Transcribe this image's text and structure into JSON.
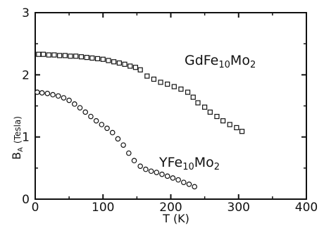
{
  "chart_data": {
    "type": "scatter",
    "title": "",
    "xlabel": "T (K)",
    "ylabel": "B",
    "ylabel_sub": "A",
    "ylabel_unit": "(Tesla)",
    "xlim": [
      0,
      400
    ],
    "ylim": [
      0,
      3
    ],
    "xticks": [
      0,
      100,
      200,
      300,
      400
    ],
    "yticks": [
      0,
      1,
      2,
      3
    ],
    "xtick_labels": [
      "0",
      "100",
      "200",
      "300",
      "400"
    ],
    "ytick_labels": [
      "0",
      "1",
      "2",
      "3"
    ],
    "grid": false,
    "series": [
      {
        "name": "GdFe10Mo2",
        "label_parts": {
          "a": "GdFe",
          "sub1": "10",
          "b": "Mo",
          "sub2": "2"
        },
        "marker": "square",
        "x": [
          5,
          12,
          20,
          28,
          36,
          44,
          52,
          60,
          68,
          76,
          84,
          92,
          100,
          108,
          116,
          124,
          132,
          140,
          148,
          155,
          165,
          175,
          185,
          195,
          205,
          215,
          225,
          233,
          240,
          250,
          258,
          268,
          277,
          287,
          297,
          305
        ],
        "y": [
          2.33,
          2.33,
          2.32,
          2.32,
          2.31,
          2.31,
          2.3,
          2.3,
          2.29,
          2.28,
          2.27,
          2.26,
          2.25,
          2.23,
          2.21,
          2.19,
          2.17,
          2.14,
          2.12,
          2.08,
          1.98,
          1.93,
          1.88,
          1.85,
          1.81,
          1.77,
          1.72,
          1.64,
          1.55,
          1.48,
          1.4,
          1.33,
          1.26,
          1.2,
          1.15,
          1.09
        ]
      },
      {
        "name": "YFe10Mo2",
        "label_parts": {
          "a": "YFe",
          "sub1": "10",
          "b": "Mo",
          "sub2": "2"
        },
        "marker": "circle",
        "x": [
          3,
          10,
          18,
          26,
          34,
          42,
          50,
          58,
          66,
          74,
          82,
          90,
          98,
          106,
          114,
          122,
          130,
          138,
          146,
          155,
          163,
          171,
          179,
          187,
          195,
          203,
          211,
          219,
          227,
          235
        ],
        "y": [
          1.72,
          1.71,
          1.7,
          1.68,
          1.66,
          1.63,
          1.59,
          1.53,
          1.47,
          1.4,
          1.33,
          1.26,
          1.2,
          1.14,
          1.07,
          0.97,
          0.87,
          0.74,
          0.62,
          0.53,
          0.48,
          0.45,
          0.43,
          0.4,
          0.37,
          0.34,
          0.31,
          0.27,
          0.24,
          0.2
        ]
      }
    ]
  }
}
